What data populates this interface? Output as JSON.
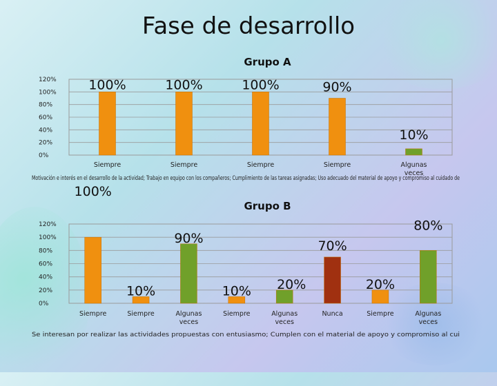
{
  "slide": {
    "title": "Fase de desarrollo"
  },
  "colors": {
    "orange": "#F0900F",
    "green": "#70A02A",
    "darkred": "#A03010",
    "grid": "#9a9a9a"
  },
  "chart_data": [
    {
      "type": "bar",
      "title": "Grupo A",
      "ylim": [
        0,
        1.2
      ],
      "yticks": [
        "0%",
        "20%",
        "40%",
        "60%",
        "80%",
        "100%",
        "120%"
      ],
      "categories": [
        "Siempre",
        "Siempre",
        "Siempre",
        "Siempre",
        "Algunas veces"
      ],
      "values": [
        1.0,
        1.0,
        1.0,
        0.9,
        0.1
      ],
      "data_labels": [
        "100%",
        "100%",
        "100%",
        "90%",
        "10%"
      ],
      "bar_colors": [
        "orange",
        "orange",
        "orange",
        "orange",
        "green"
      ],
      "overlay_text": "Motivación e interés en el desarrollo de la actividad; Trabajo en equipo con los compañeros; Cumplimiento de las tareas asignadas; Uso adecuado del material de apoyo y compromiso al cuidado de"
    },
    {
      "type": "bar",
      "title": "Grupo B",
      "ylim": [
        0,
        1.2
      ],
      "yticks": [
        "0%",
        "20%",
        "40%",
        "60%",
        "80%",
        "100%",
        "120%"
      ],
      "categories": [
        "Siempre",
        "Siempre",
        "Algunas veces",
        "Siempre",
        "Algunas veces",
        "Nunca",
        "Siempre",
        "Algunas veces"
      ],
      "values": [
        1.0,
        0.1,
        0.9,
        0.1,
        0.2,
        0.7,
        0.2,
        0.8
      ],
      "data_labels": [
        "100%",
        "10%",
        "90%",
        "10%",
        "20%",
        "70%",
        "20%",
        "80%"
      ],
      "bar_colors": [
        "orange",
        "orange",
        "green",
        "orange",
        "green",
        "darkred",
        "orange",
        "green"
      ],
      "overlay_text": "Se interesan por realizar las actividades propuestas con entusiasmo; Cumplen con el material de apoyo y compromiso al cui"
    }
  ]
}
